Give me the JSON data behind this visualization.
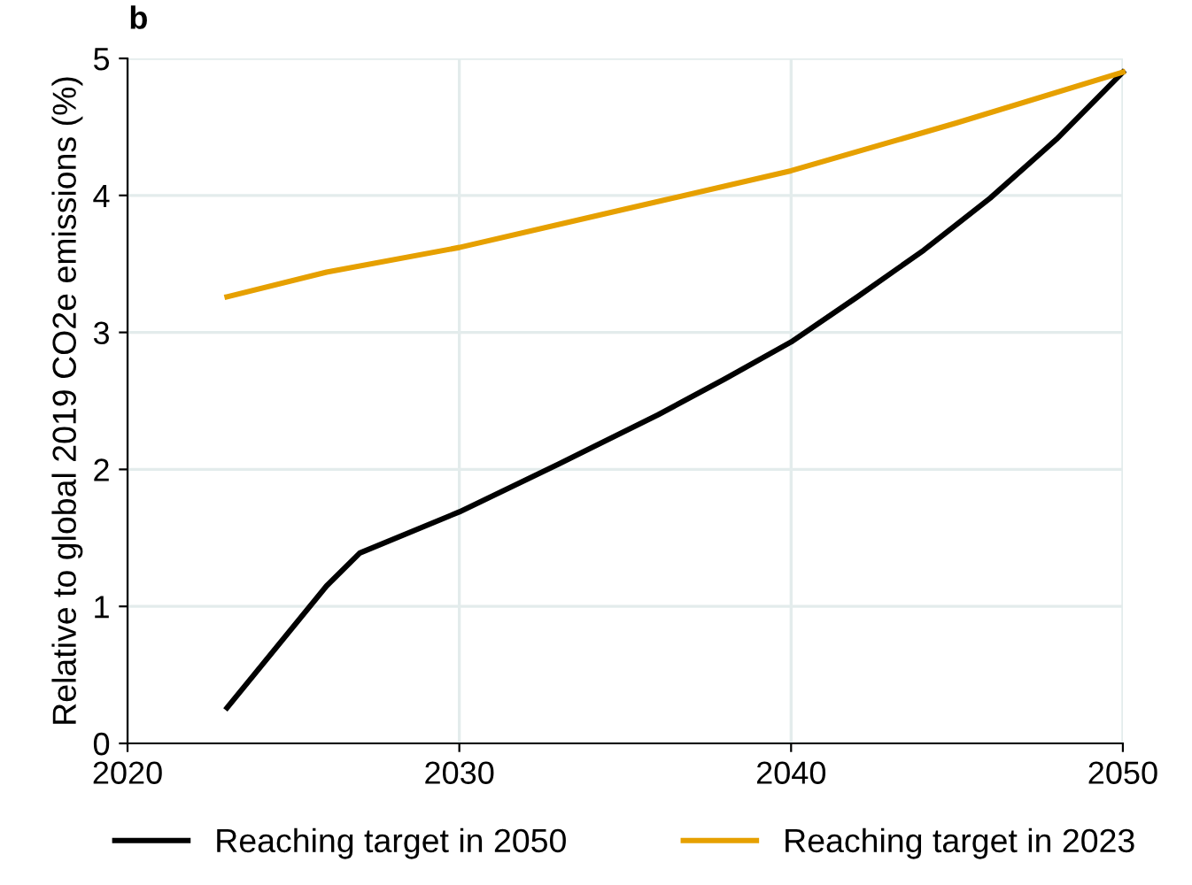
{
  "chart_data": {
    "type": "line",
    "ylabel": "Relative to global 2019 CO2e emissions (%)",
    "annotations": [
      "b"
    ],
    "xlim": [
      2020,
      2050
    ],
    "xticks": [
      2020,
      2030,
      2040,
      2050
    ],
    "ylim": [
      0,
      5
    ],
    "yticks": [
      0,
      1,
      2,
      3,
      4,
      5
    ],
    "grid": true,
    "legend": "bottom",
    "marker": "none",
    "line_style": "solid",
    "series": [
      {
        "name": "Reaching target in 2050",
        "color": "#000000",
        "x": [
          2023,
          2026,
          2027,
          2030,
          2033,
          2036,
          2038,
          2040,
          2042,
          2044,
          2046,
          2048,
          2050
        ],
        "values": [
          0.26,
          1.15,
          1.39,
          1.69,
          2.04,
          2.4,
          2.66,
          2.93,
          3.26,
          3.6,
          3.98,
          4.41,
          4.9
        ]
      },
      {
        "name": "Reaching target in 2023",
        "color": "#e6a000",
        "x": [
          2023,
          2026,
          2030,
          2035,
          2040,
          2045,
          2050
        ],
        "values": [
          3.26,
          3.44,
          3.62,
          3.9,
          4.18,
          4.53,
          4.9
        ]
      }
    ]
  }
}
